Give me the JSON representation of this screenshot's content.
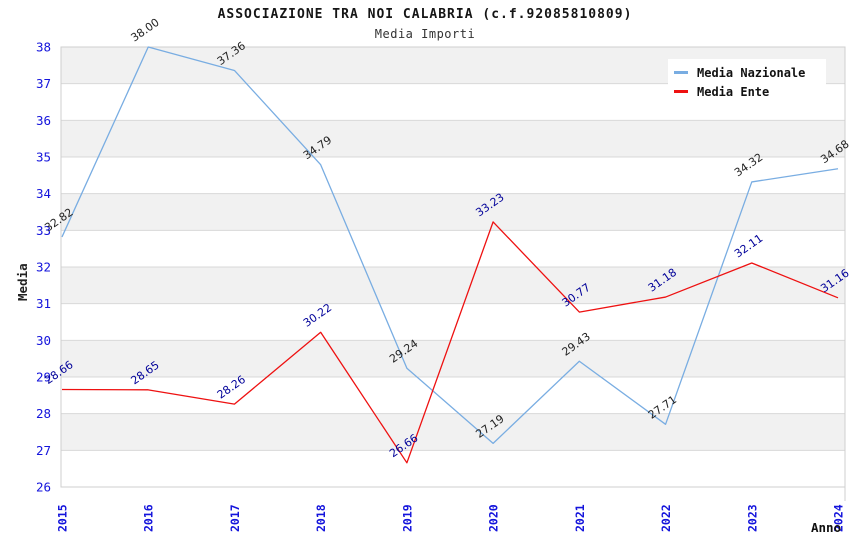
{
  "chart_data": {
    "type": "line",
    "title": "ASSOCIAZIONE TRA NOI CALABRIA (c.f.92085810809)",
    "subtitle": "Media Importi",
    "xlabel": "Anno",
    "ylabel": "Media",
    "categories": [
      "2015",
      "2016",
      "2017",
      "2018",
      "2019",
      "2020",
      "2021",
      "2022",
      "2023",
      "2024"
    ],
    "series": [
      {
        "name": "Media Nazionale",
        "color": "#79ADE2",
        "label_color": "#222222",
        "values": [
          32.82,
          38.0,
          37.36,
          34.79,
          29.24,
          27.19,
          29.43,
          27.71,
          34.32,
          34.68
        ],
        "labels": [
          "32.82",
          "38.00",
          "37.36",
          "34.79",
          "29.24",
          "27.19",
          "29.43",
          "27.71",
          "34.32",
          "34.68"
        ]
      },
      {
        "name": "Media Ente",
        "color": "#EE1111",
        "label_color": "#000099",
        "values": [
          28.66,
          28.65,
          28.26,
          30.22,
          26.66,
          33.23,
          30.77,
          31.18,
          32.11,
          31.16
        ],
        "labels": [
          "28.66",
          "28.65",
          "28.26",
          "30.22",
          "26.66",
          "33.23",
          "30.77",
          "31.18",
          "32.11",
          "31.16"
        ]
      }
    ],
    "ylim": [
      26,
      38
    ],
    "yticks": [
      26,
      27,
      28,
      29,
      30,
      31,
      32,
      33,
      34,
      35,
      36,
      37,
      38
    ],
    "grid": true,
    "legend_position": "top-right",
    "colors": {
      "tick_label": "#1414DC",
      "grid_line": "#D8D8D8",
      "frame": "#CFCFCF",
      "band_gray": "#F1F1F1",
      "band_white": "#FFFFFF"
    }
  }
}
